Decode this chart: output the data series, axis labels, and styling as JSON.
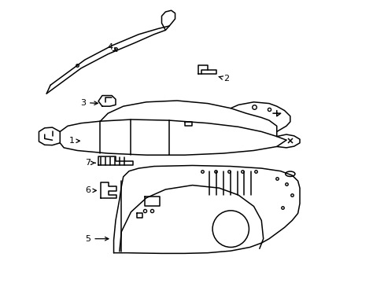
{
  "background_color": "#ffffff",
  "line_color": "#000000",
  "line_width": 1.1,
  "fig_width": 4.89,
  "fig_height": 3.6
}
